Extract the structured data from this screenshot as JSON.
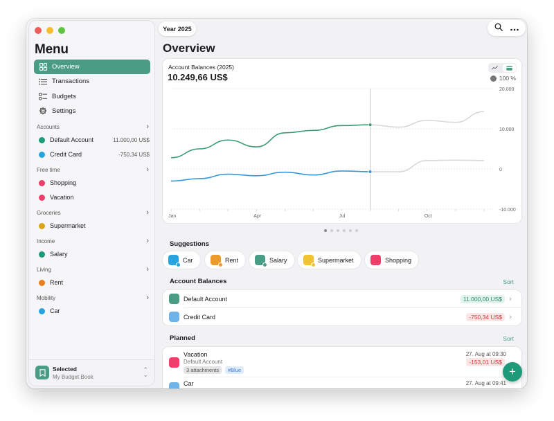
{
  "window": {
    "traffic_colors": [
      "#ee5e57",
      "#f5bd2f",
      "#5fc441"
    ]
  },
  "sidebar": {
    "title": "Menu",
    "nav": [
      {
        "label": "Overview",
        "icon": "grid-icon",
        "active": true
      },
      {
        "label": "Transactions",
        "icon": "list-icon"
      },
      {
        "label": "Budgets",
        "icon": "budget-list-icon"
      },
      {
        "label": "Settings",
        "icon": "gear-icon"
      }
    ],
    "groups": [
      {
        "name": "Accounts",
        "items": [
          {
            "label": "Default Account",
            "value": "11.000,00 US$",
            "color": "#1d9a78"
          },
          {
            "label": "Credit Card",
            "value": "-750,34 US$",
            "color": "#27a4e0"
          }
        ]
      },
      {
        "name": "Free time",
        "items": [
          {
            "label": "Shopping",
            "color": "#ee3f6a"
          },
          {
            "label": "Vacation",
            "color": "#ee3f6a"
          }
        ]
      },
      {
        "name": "Groceries",
        "items": [
          {
            "label": "Supermarket",
            "color": "#d9a418"
          }
        ]
      },
      {
        "name": "Income",
        "items": [
          {
            "label": "Salary",
            "color": "#1d9a78"
          }
        ]
      },
      {
        "name": "Living",
        "items": [
          {
            "label": "Rent",
            "color": "#ec7f1e"
          }
        ]
      },
      {
        "name": "Mobility",
        "items": [
          {
            "label": "Car",
            "color": "#27a4e0"
          }
        ]
      }
    ],
    "footer": {
      "title": "Selected",
      "subtitle": "My Budget Book"
    }
  },
  "header": {
    "year_label": "Year 2025",
    "search_icon": "search-icon",
    "more_icon": "more-icon"
  },
  "page_title": "Overview",
  "chart_card": {
    "title": "Account Balances (2025)",
    "total": "10.249,66 US$",
    "percent": "100 %"
  },
  "chart_data": {
    "type": "line",
    "x": [
      "Jan",
      "Feb",
      "Mar",
      "Apr",
      "May",
      "Jun",
      "Jul",
      "Aug",
      "Sep",
      "Oct",
      "Nov",
      "Dec"
    ],
    "xtick_labels": [
      "Jan",
      "Apr",
      "Jul",
      "Oct"
    ],
    "ytick_labels": [
      "20.000",
      "10.000",
      "0",
      "-10.000"
    ],
    "ylim": [
      -10000,
      20000
    ],
    "grid": true,
    "series": [
      {
        "color": "#3a9a72",
        "values": [
          2800,
          5000,
          7200,
          5500,
          9000,
          9600,
          10800,
          11000,
          10400,
          12100,
          11600,
          14300
        ],
        "actual_until": "Aug"
      },
      {
        "color": "#3498db",
        "values": [
          -3000,
          -2400,
          -1300,
          -1700,
          -800,
          -1500,
          -500,
          -700,
          -700,
          2100,
          2200,
          2100
        ],
        "actual_until": "Aug"
      }
    ],
    "marker_at": "Aug",
    "projection_color": "#d9d9dc"
  },
  "pager": {
    "count": 6,
    "active": 0
  },
  "suggestions": {
    "title": "Suggestions",
    "items": [
      {
        "label": "Car",
        "color": "#27a4e0",
        "badge": "#27a4e0"
      },
      {
        "label": "Rent",
        "color": "#ec9a2a",
        "badge": "#ec9a2a"
      },
      {
        "label": "Salary",
        "color": "#4a9d84",
        "badge": "#4a9d84"
      },
      {
        "label": "Supermarket",
        "color": "#f2c230",
        "badge": "#f2c230"
      },
      {
        "label": "Shopping",
        "color": "#ee3f6a",
        "badge": null
      }
    ]
  },
  "balances": {
    "title": "Account Balances",
    "sort_label": "Sort",
    "rows": [
      {
        "label": "Default Account",
        "amount": "11.000,00 US$",
        "kind": "pos",
        "color": "#4a9d84"
      },
      {
        "label": "Credit Card",
        "amount": "-750,34 US$",
        "kind": "neg",
        "color": "#6eb4e8"
      }
    ]
  },
  "planned": {
    "title": "Planned",
    "sort_label": "Sort",
    "rows": [
      {
        "title": "Vacation",
        "account": "Default Account",
        "attachments": "3 attachments",
        "tag": "#Blue",
        "date": "27. Aug at 09:30",
        "amount": "-153,01 US$",
        "color": "#ee3f6a"
      },
      {
        "title": "Car",
        "date": "27. Aug at 09:41",
        "color": "#6eb4e8"
      }
    ]
  },
  "fab_label": "+"
}
